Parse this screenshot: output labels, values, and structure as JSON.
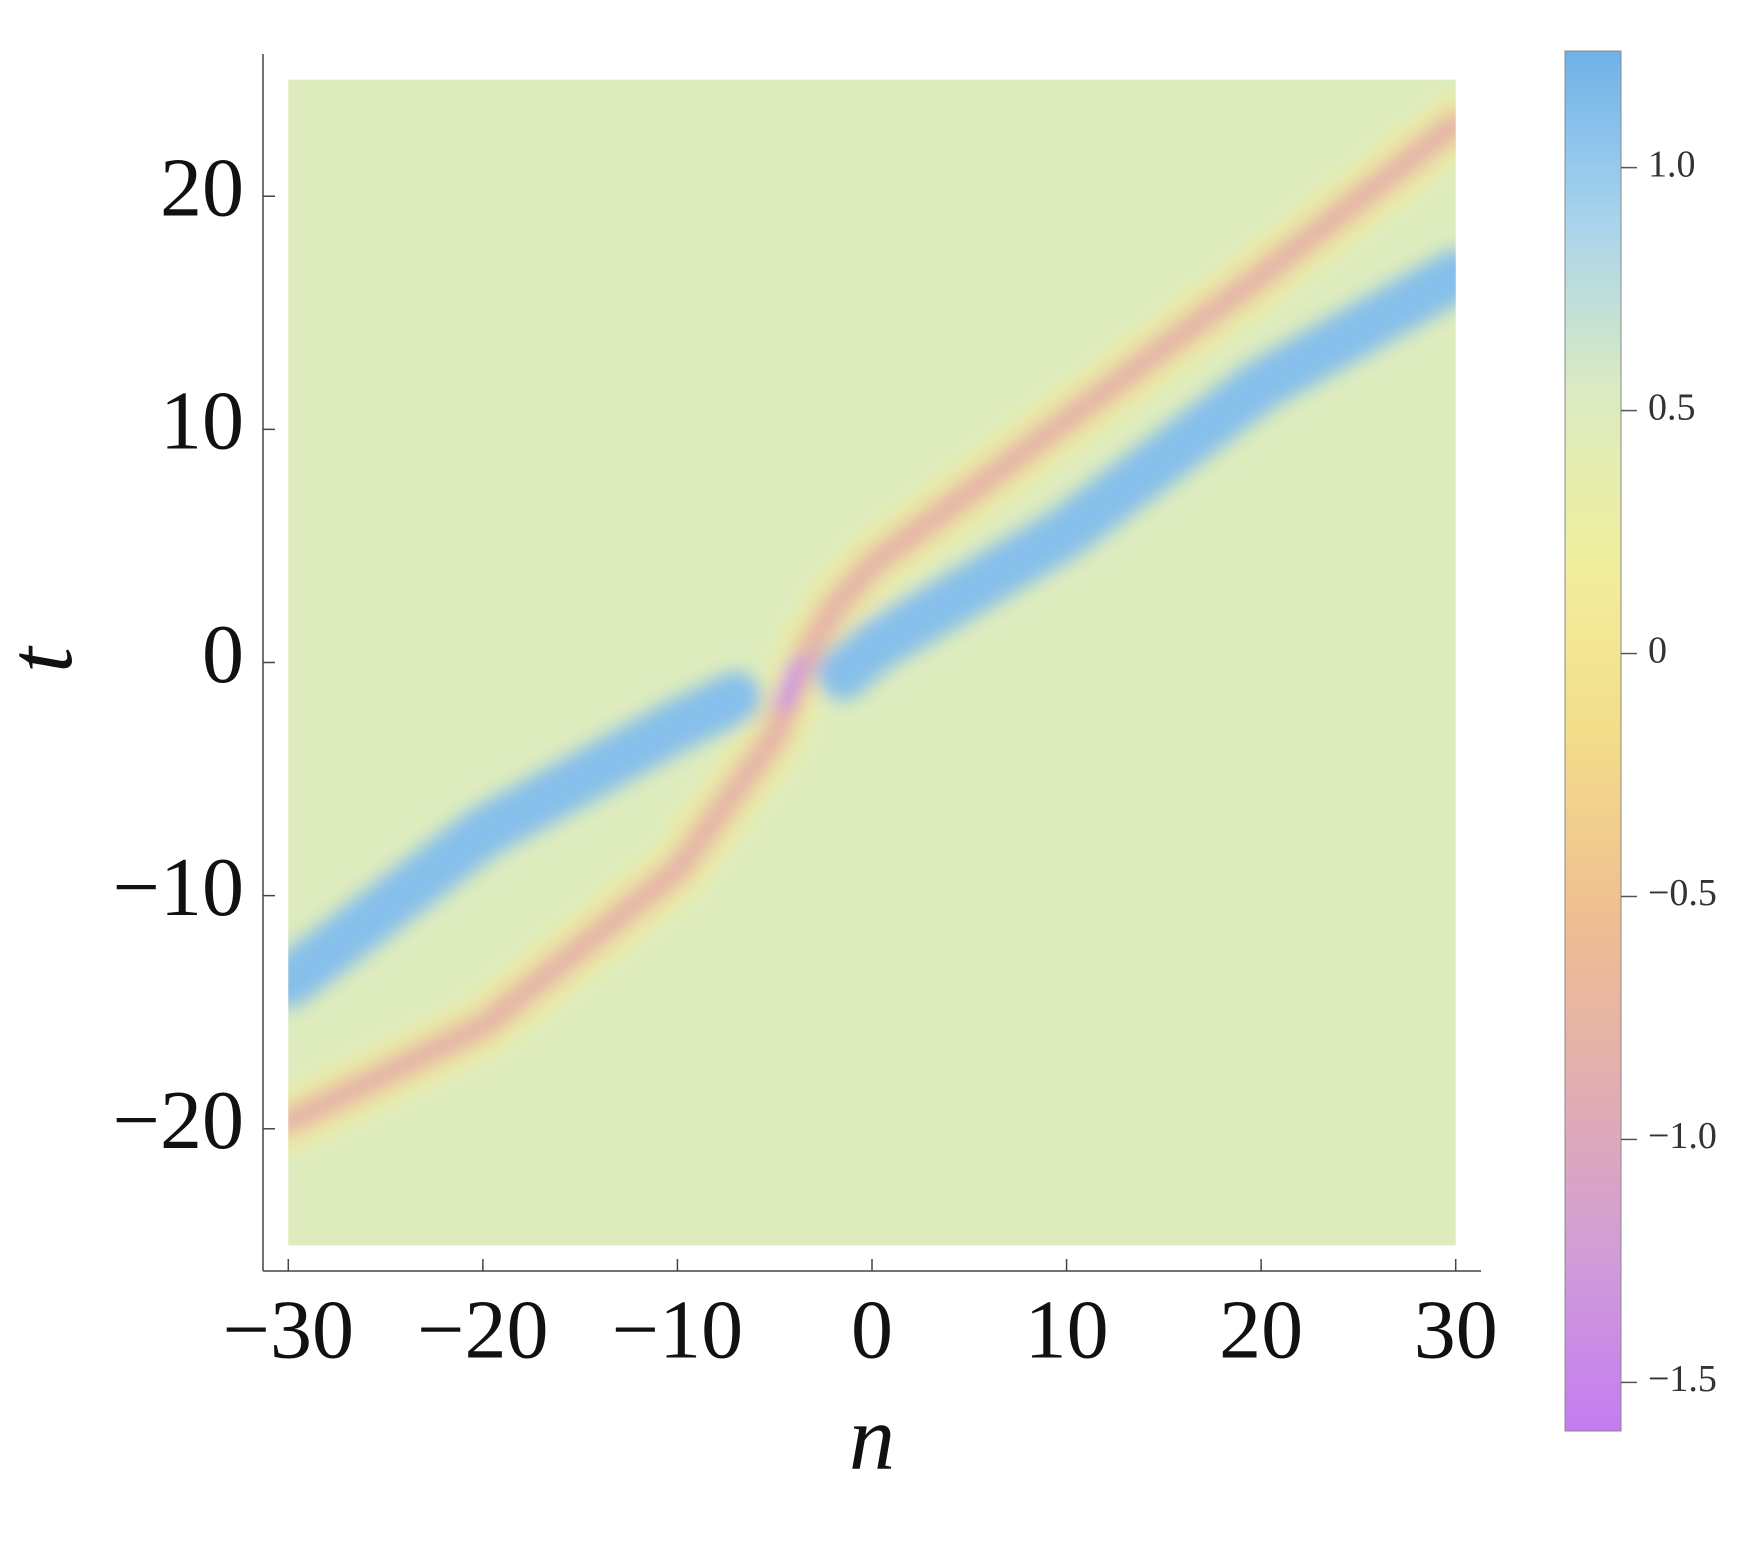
{
  "chart_data": {
    "type": "density",
    "x_label": "n",
    "y_label": "t",
    "xlim": [
      -31.3,
      31.3
    ],
    "ylim": [
      -26.1,
      26.1
    ],
    "x_range": [
      -30,
      30
    ],
    "y_range": [
      -25,
      25
    ],
    "xticks": [
      {
        "value": -30,
        "label": "−30"
      },
      {
        "value": -20,
        "label": "−20"
      },
      {
        "value": -10,
        "label": "−10"
      },
      0,
      10,
      20,
      30
    ],
    "yticks": [
      {
        "value": -20,
        "label": "−20"
      },
      {
        "value": -10,
        "label": "−10"
      },
      0,
      10,
      20
    ],
    "zlim": [
      -1.6,
      1.24
    ],
    "zticks": [
      {
        "value": -1.5,
        "label": "−1.5"
      },
      {
        "value": -1.0,
        "label": "−1.0"
      },
      {
        "value": -0.5,
        "label": "−0.5"
      },
      0,
      0.5,
      {
        "value": 1.0,
        "label": "1.0"
      }
    ],
    "colorscale": [
      "#c47cf2",
      "#d09cd8",
      "#e2aeb0",
      "#efbf90",
      "#f3dc8a",
      "#f1ee9c",
      "#dcecc0",
      "#a9d4ec",
      "#6fb2ea"
    ],
    "base_value": 0.5,
    "curves": [
      {
        "x": [
          -30,
          -20,
          -10,
          -5,
          -4,
          -3,
          -2,
          0,
          10,
          20,
          30
        ],
        "y": [
          -19.7,
          -15.6,
          -8.9,
          -3.2,
          -1.05,
          0.9,
          2.3,
          4.2,
          10.4,
          16.6,
          23.1
        ],
        "value": -0.8
      },
      {
        "x": [
          -4.6,
          -4.2,
          -3.8
        ],
        "y": [
          -1.8,
          -0.9,
          0.0
        ],
        "value": -1.55
      },
      {
        "x": [
          -1.5,
          0,
          10,
          20,
          30
        ],
        "y": [
          -0.5,
          0.6,
          5.6,
          11.9,
          16.6
        ],
        "value": 1.1
      },
      {
        "x": [
          -30,
          -20,
          -10,
          -7
        ],
        "y": [
          -13.7,
          -7.3,
          -2.7,
          -1.5
        ],
        "value": 1.1
      }
    ]
  }
}
